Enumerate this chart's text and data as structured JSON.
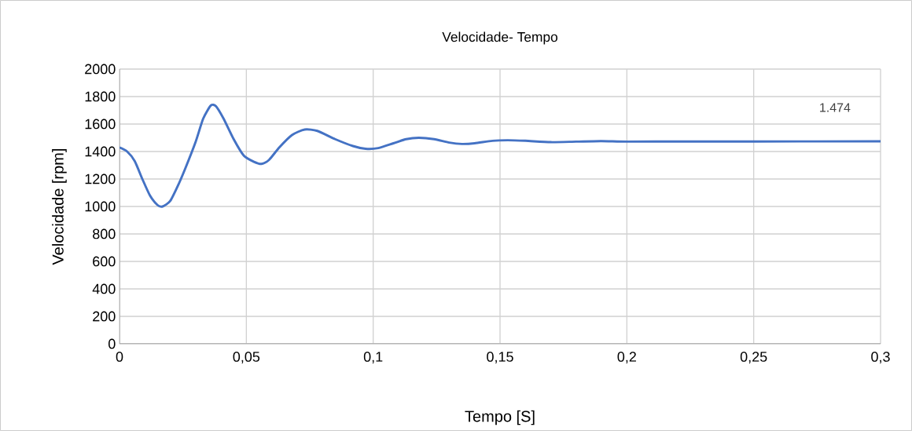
{
  "chart_data": {
    "type": "line",
    "title": "Velocidade- Tempo",
    "xlabel": "Tempo [S]",
    "ylabel": "Velocidade [rpm]",
    "annotations": [
      "1.474"
    ],
    "x": [
      0,
      0.003,
      0.006,
      0.009,
      0.012,
      0.015,
      0.017,
      0.02,
      0.023,
      0.026,
      0.03,
      0.033,
      0.036,
      0.038,
      0.041,
      0.045,
      0.049,
      0.053,
      0.056,
      0.059,
      0.063,
      0.068,
      0.073,
      0.078,
      0.085,
      0.092,
      0.097,
      0.102,
      0.108,
      0.113,
      0.118,
      0.124,
      0.13,
      0.135,
      0.14,
      0.147,
      0.153,
      0.16,
      0.17,
      0.18,
      0.19,
      0.2,
      0.22,
      0.25,
      0.3
    ],
    "series": [
      {
        "color": "#4472c4",
        "values": [
          1430,
          1400,
          1330,
          1200,
          1080,
          1010,
          1000,
          1040,
          1150,
          1280,
          1470,
          1640,
          1735,
          1730,
          1640,
          1490,
          1370,
          1325,
          1310,
          1340,
          1430,
          1520,
          1560,
          1550,
          1490,
          1440,
          1420,
          1425,
          1460,
          1490,
          1500,
          1490,
          1465,
          1455,
          1460,
          1478,
          1482,
          1478,
          1468,
          1472,
          1476,
          1472,
          1473,
          1473,
          1474
        ]
      }
    ],
    "xlim": [
      0,
      0.3
    ],
    "ylim": [
      0,
      2000
    ],
    "xticks": [
      0,
      {
        "value": 0.05,
        "label": "0,05"
      },
      {
        "value": 0.1,
        "label": "0,1"
      },
      {
        "value": 0.15,
        "label": "0,15"
      },
      {
        "value": 0.2,
        "label": "0,2"
      },
      {
        "value": 0.25,
        "label": "0,25"
      },
      {
        "value": 0.3,
        "label": "0,3"
      }
    ],
    "yticks": [
      0,
      200,
      400,
      600,
      800,
      1000,
      1200,
      1400,
      1600,
      1800,
      2000
    ],
    "grid": true,
    "marker": "none",
    "line_style": "solid"
  }
}
